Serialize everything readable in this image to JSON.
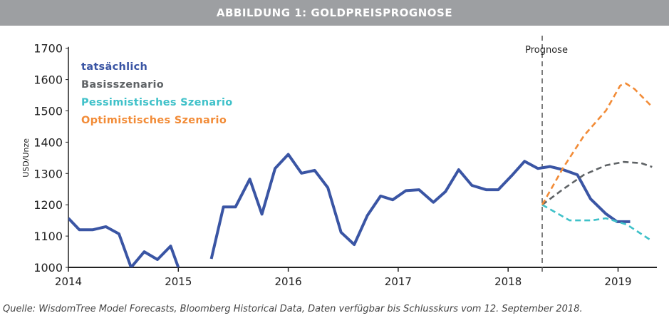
{
  "header": {
    "title": "ABBILDUNG 1: GOLDPREISPROGNOSE"
  },
  "source": "Quelle: WisdomTree Model Forecasts, Bloomberg Historical Data, Daten verfügbar bis Schlusskurs vom 12. September 2018.",
  "chart_data": {
    "type": "line",
    "title": "ABBILDUNG 1: GOLDPREISPROGNOSE",
    "xlabel": "",
    "ylabel": "USD/Unze",
    "xlim": [
      2014,
      2019.35
    ],
    "ylim": [
      1000,
      1700
    ],
    "x_ticks": [
      "2014",
      "2015",
      "2016",
      "2017",
      "2018",
      "2019"
    ],
    "y_ticks": [
      "1000",
      "1100",
      "1200",
      "1300",
      "1400",
      "1500",
      "1600",
      "1700"
    ],
    "grid": false,
    "legend_position": "top-left",
    "annotation": {
      "label": "Prognose",
      "x": 2018.31
    },
    "series": [
      {
        "name": "tatsächlich",
        "color": "#3a55a4",
        "dashed": false,
        "x": [
          2014.0,
          2014.1,
          2014.22,
          2014.34,
          2014.46,
          2014.57,
          2014.69,
          2014.81,
          2014.93,
          2015.0,
          2015.24,
          2015.3,
          2015.41,
          2015.52,
          2015.65,
          2015.76,
          2015.88,
          2016.0,
          2016.12,
          2016.24,
          2016.36,
          2016.48,
          2016.6,
          2016.72,
          2016.84,
          2016.95,
          2017.07,
          2017.19,
          2017.32,
          2017.43,
          2017.55,
          2017.67,
          2017.8,
          2017.91,
          2018.04,
          2018.15,
          2018.27,
          2018.38,
          2018.5,
          2018.63,
          2018.75,
          2018.89,
          2018.99,
          2019.11
        ],
        "y": [
          1157,
          1120,
          1120,
          1130,
          1107,
          1000,
          1050,
          1025,
          1068,
          1000,
          null,
          1027,
          1193,
          1193,
          1282,
          1170,
          1316,
          1361,
          1301,
          1310,
          1255,
          1112,
          1073,
          1166,
          1228,
          1216,
          1245,
          1248,
          1208,
          1242,
          1312,
          1262,
          1248,
          1248,
          1296,
          1339,
          1316,
          1322,
          1312,
          1296,
          1219,
          1171,
          1146,
          1146
        ]
      },
      {
        "name": "Basisszenario",
        "color": "#5f6366",
        "dashed": true,
        "x": [
          2018.31,
          2018.5,
          2018.69,
          2018.89,
          2019.05,
          2019.21,
          2019.31
        ],
        "y": [
          1200,
          1250,
          1296,
          1326,
          1337,
          1333,
          1321
        ]
      },
      {
        "name": "Pessimistisches Szenario",
        "color": "#3fc1c9",
        "dashed": true,
        "x": [
          2018.31,
          2018.56,
          2018.76,
          2018.89,
          2019.08,
          2019.31
        ],
        "y": [
          1200,
          1150,
          1150,
          1157,
          1137,
          1084
        ]
      },
      {
        "name": "Optimistisches Szenario",
        "color": "#f28c38",
        "dashed": true,
        "x": [
          2018.31,
          2018.5,
          2018.69,
          2018.89,
          2019.02,
          2019.07,
          2019.15,
          2019.31
        ],
        "y": [
          1200,
          1318,
          1421,
          1501,
          1581,
          1588,
          1570,
          1513
        ]
      }
    ]
  }
}
